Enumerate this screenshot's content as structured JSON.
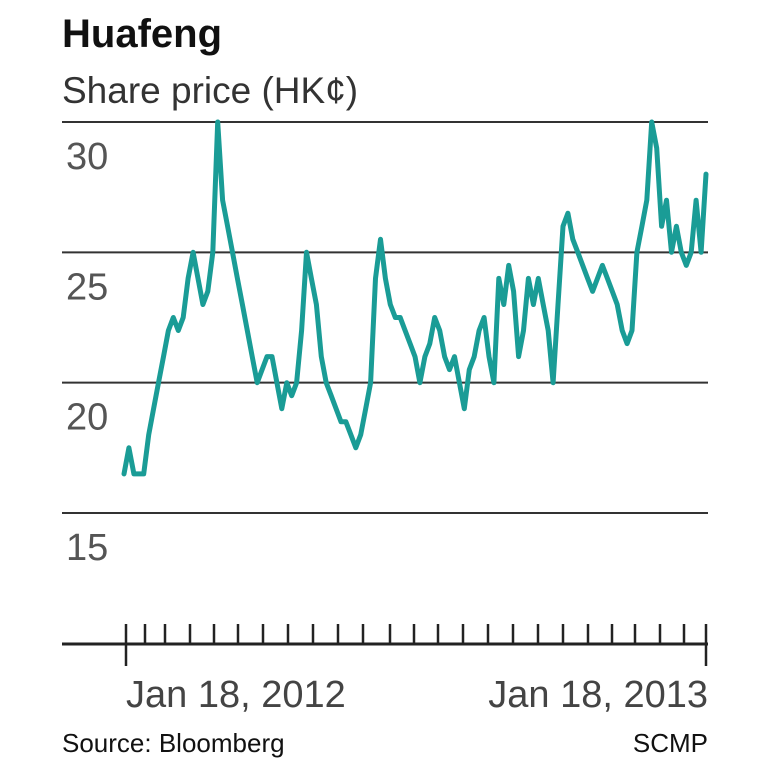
{
  "chart_data": {
    "type": "line",
    "title": "Huafeng",
    "subtitle": "Share price (HK¢)",
    "ylim": [
      15,
      30
    ],
    "yticks": [
      30,
      25,
      20,
      15
    ],
    "xticks": [
      "Jan 18, 2012",
      "Jan 18, 2013"
    ],
    "line_color": "#1a9c96",
    "grid": true,
    "series": [
      {
        "values": [
          16.5,
          17.5,
          16.5,
          16.5,
          16.5,
          18,
          19,
          20,
          21,
          22,
          22.5,
          22,
          22.5,
          24,
          25,
          24,
          23,
          23.5,
          25,
          30,
          27,
          26,
          25,
          24,
          23,
          22,
          21,
          20,
          20.5,
          21,
          21,
          20,
          19,
          20,
          19.5,
          20,
          22,
          25,
          24,
          23,
          21,
          20,
          19.5,
          19,
          18.5,
          18.5,
          18,
          17.5,
          18,
          19,
          20,
          24,
          25.5,
          24,
          23,
          22.5,
          22.5,
          22,
          21.5,
          21,
          20,
          21,
          21.5,
          22.5,
          22,
          21,
          20.5,
          21,
          20,
          19,
          20.5,
          21,
          22,
          22.5,
          21,
          20,
          24,
          23,
          24.5,
          23.5,
          21,
          22,
          24,
          23,
          24,
          23,
          22,
          20,
          23,
          26,
          26.5,
          25.5,
          25,
          24.5,
          24,
          23.5,
          24,
          24.5,
          24,
          23.5,
          23,
          22,
          21.5,
          22,
          25,
          26,
          27,
          30,
          29,
          26,
          27,
          25,
          26,
          25,
          24.5,
          25,
          27,
          25,
          28
        ]
      }
    ],
    "footer": {
      "source": "Source: Bloomberg",
      "credit": "SCMP"
    }
  }
}
